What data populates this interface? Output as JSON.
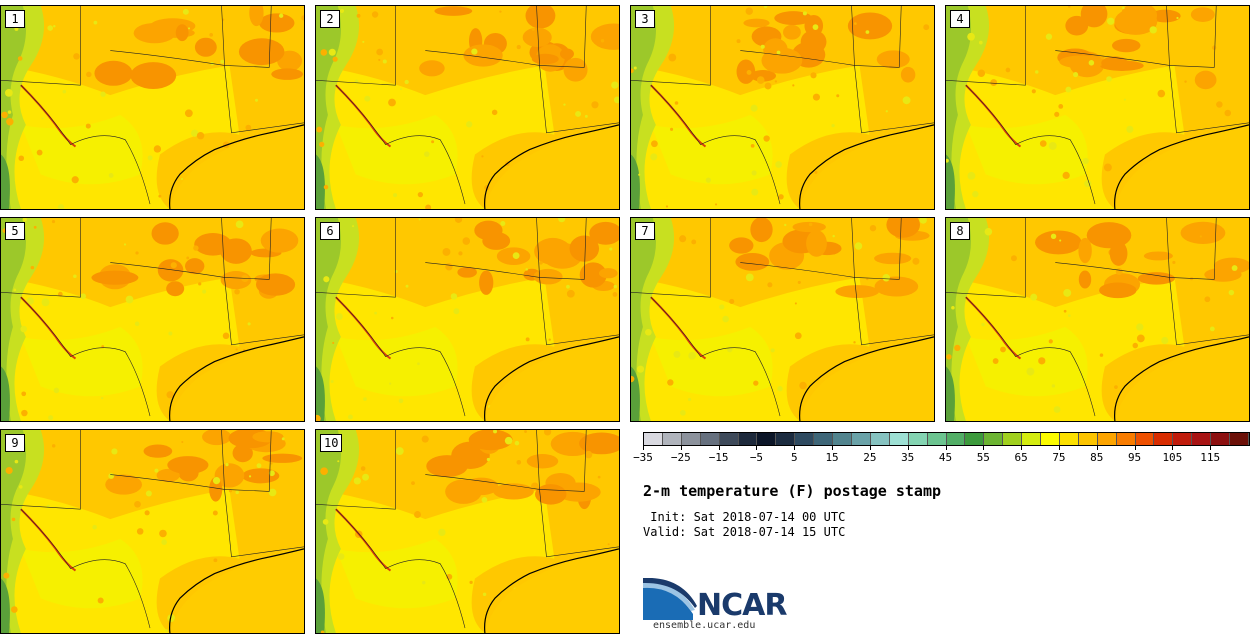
{
  "panels": [
    {
      "label": "1"
    },
    {
      "label": "2"
    },
    {
      "label": "3"
    },
    {
      "label": "4"
    },
    {
      "label": "5"
    },
    {
      "label": "6"
    },
    {
      "label": "7"
    },
    {
      "label": "8"
    },
    {
      "label": "9"
    },
    {
      "label": "10"
    }
  ],
  "colorbar": {
    "colors": [
      "#d9d9e0",
      "#b0b4bc",
      "#8c929c",
      "#66707e",
      "#3e4a5a",
      "#1e2a3c",
      "#0c1628",
      "#1c2c40",
      "#2e4a60",
      "#3e6678",
      "#52848e",
      "#6aa2a8",
      "#86c2c0",
      "#9ee0d4",
      "#84d4b2",
      "#6cc490",
      "#52ae66",
      "#3c9a3c",
      "#6cb432",
      "#a0d01e",
      "#d4ec10",
      "#fcfc00",
      "#fce000",
      "#fcc400",
      "#fca400",
      "#f87c00",
      "#ee5000",
      "#d82c00",
      "#c01c0c",
      "#a81414",
      "#8c1010",
      "#6c1008"
    ],
    "tick_labels": [
      "−35",
      "−25",
      "−15",
      "−5",
      "5",
      "15",
      "25",
      "35",
      "45",
      "55",
      "65",
      "75",
      "85",
      "95",
      "105",
      "115"
    ]
  },
  "title": "2-m temperature (F) postage stamp",
  "init_line": " Init: Sat 2018-07-14 00 UTC",
  "valid_line": "Valid: Sat 2018-07-14 15 UTC",
  "logo_text": "NCAR",
  "url": "ensemble.ucar.edu"
}
